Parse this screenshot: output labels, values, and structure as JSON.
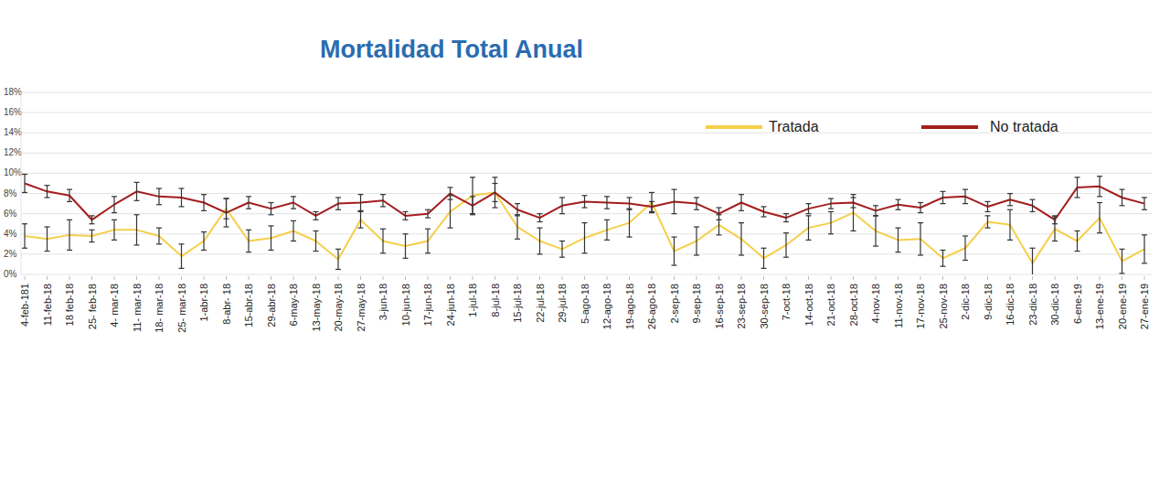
{
  "chart_data": {
    "type": "line",
    "title": "Mortalidad Total Anual",
    "categories": [
      "4-feb-181",
      "11-feb-18",
      "18 feb-18",
      "25- feb-18",
      "4- mar-18",
      "11- mar-18",
      "18- mar-18",
      "25- mar-18",
      "1-abr-18",
      "8-abr- 18",
      "15-abr-18",
      "29-abr-18",
      "6-may-18",
      "13-may-18",
      "20-may-18",
      "27-may-18",
      "3-jun-18",
      "10-jun-18",
      "17-jun-18",
      "24-jun-18",
      "1-jul-18",
      "8-jul-18",
      "15-jul-18",
      "22-jul-18",
      "29-jul-18",
      "5-ago-18",
      "12-ago-18",
      "19-ago-18",
      "26-ago-18",
      "2-sep-18",
      "9-sep-18",
      "16-sep-18",
      "23-sep-18",
      "30-sep-18",
      "7-oct-18",
      "14-oct-18",
      "21-oct-18",
      "28-oct-18",
      "4-nov-18",
      "11-nov-18",
      "17-nov-18",
      "25-nov-18",
      "2-dic-18",
      "9-dic-18",
      "16-dic-18",
      "23-dic-18",
      "30-dic-18",
      "6-ene-19",
      "13-ene-19",
      "20-ene-19",
      "27-ene-19"
    ],
    "series": [
      {
        "name": "Tratada",
        "color": "#f5cf4a",
        "values": [
          3.8,
          3.5,
          3.9,
          3.8,
          4.4,
          4.4,
          3.8,
          1.8,
          3.3,
          6.5,
          3.3,
          3.6,
          4.3,
          3.3,
          1.5,
          5.4,
          3.3,
          2.8,
          3.3,
          6.2,
          7.8,
          8.1,
          4.7,
          3.3,
          2.5,
          3.6,
          4.4,
          5.1,
          7.1,
          2.3,
          3.3,
          4.9,
          3.5,
          1.6,
          2.9,
          4.6,
          5.1,
          6.1,
          4.3,
          3.4,
          3.5,
          1.6,
          2.6,
          5.2,
          4.9,
          1.1,
          4.5,
          3.3,
          5.6,
          1.3,
          2.5
        ],
        "errors": [
          1.2,
          1.2,
          1.5,
          0.6,
          1.0,
          1.5,
          0.8,
          1.2,
          0.9,
          1.0,
          1.1,
          1.2,
          1.0,
          1.0,
          1.0,
          0.8,
          1.2,
          1.2,
          1.2,
          1.6,
          1.8,
          1.5,
          1.2,
          1.3,
          0.8,
          1.5,
          1.0,
          1.4,
          1.0,
          1.4,
          1.4,
          1.0,
          1.6,
          1.0,
          1.2,
          1.2,
          1.1,
          1.8,
          1.5,
          1.2,
          1.6,
          0.8,
          1.2,
          0.6,
          1.5,
          1.5,
          1.2,
          1.0,
          1.5,
          1.2,
          1.4
        ]
      },
      {
        "name": "No tratada",
        "color": "#a51d1d",
        "values": [
          9.0,
          8.2,
          7.8,
          5.4,
          6.9,
          8.2,
          7.7,
          7.6,
          7.1,
          6.1,
          7.1,
          6.5,
          7.1,
          5.8,
          7.0,
          7.1,
          7.3,
          5.8,
          6.0,
          8.0,
          6.8,
          8.1,
          6.4,
          5.6,
          6.8,
          7.2,
          7.1,
          7.0,
          6.7,
          7.2,
          7.0,
          6.0,
          7.1,
          6.2,
          5.6,
          6.5,
          7.0,
          7.1,
          6.3,
          6.9,
          6.6,
          7.6,
          7.7,
          6.7,
          7.4,
          6.8,
          5.4,
          8.6,
          8.7,
          7.6,
          7.0
        ],
        "errors": [
          0.9,
          0.6,
          0.6,
          0.4,
          0.8,
          0.9,
          0.8,
          0.9,
          0.8,
          1.4,
          0.6,
          0.6,
          0.6,
          0.4,
          0.6,
          0.8,
          0.6,
          0.4,
          0.4,
          0.6,
          0.9,
          0.9,
          0.6,
          0.4,
          0.8,
          0.6,
          0.6,
          0.6,
          0.5,
          1.2,
          0.6,
          0.6,
          0.8,
          0.5,
          0.4,
          0.5,
          0.5,
          0.5,
          0.5,
          0.5,
          0.5,
          0.6,
          0.7,
          0.5,
          0.6,
          0.6,
          0.4,
          1.0,
          1.0,
          0.8,
          0.6
        ]
      }
    ],
    "ylim": [
      0,
      18
    ],
    "yticks": [
      {
        "value": 0,
        "label": "0%"
      },
      {
        "value": 2,
        "label": "2%"
      },
      {
        "value": 4,
        "label": "4%"
      },
      {
        "value": 6,
        "label": "6%"
      },
      {
        "value": 8,
        "label": "8%"
      },
      {
        "value": 10,
        "label": "10%"
      },
      {
        "value": 12,
        "label": "12%"
      },
      {
        "value": 14,
        "label": "14%"
      },
      {
        "value": 16,
        "label": "16%"
      },
      {
        "value": 18,
        "label": "18%"
      }
    ],
    "grid": true,
    "legend": "top-right"
  }
}
